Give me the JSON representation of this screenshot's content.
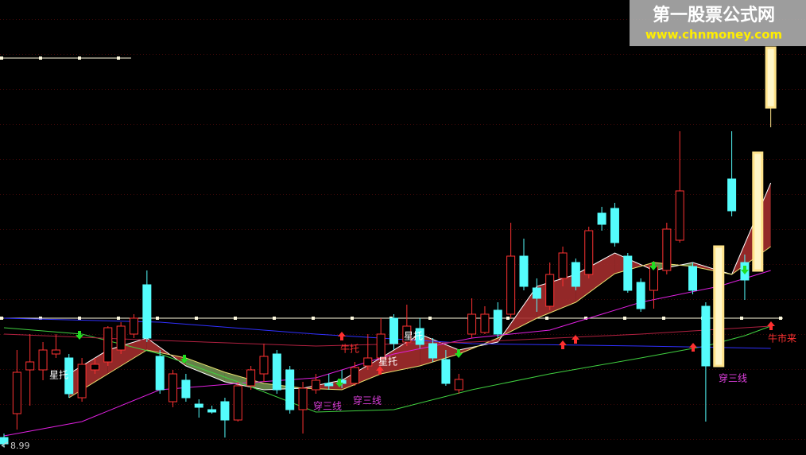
{
  "chart_data": {
    "type": "candlestick",
    "watermark": {
      "title": "第一股票公式网",
      "url": "www.chnmoney.com"
    },
    "ylim": [
      8.8,
      20.24
    ],
    "up_color": "#ff3232",
    "down_color": "#54fcfc",
    "highlight_color": "#ffe38a",
    "highlight": [
      55,
      58,
      59
    ],
    "ohlc": [
      [
        9.24,
        9.34,
        8.99,
        9.08
      ],
      [
        9.84,
        11.44,
        9.44,
        10.88
      ],
      [
        10.94,
        11.84,
        10.04,
        11.14
      ],
      [
        10.94,
        11.64,
        10.68,
        11.44
      ],
      [
        11.34,
        11.84,
        11.24,
        11.44
      ],
      [
        11.24,
        11.34,
        10.24,
        10.34
      ],
      [
        10.24,
        11.24,
        10.14,
        11.08
      ],
      [
        10.94,
        11.24,
        10.84,
        11.08
      ],
      [
        11.14,
        12.04,
        11.04,
        12.0
      ],
      [
        11.44,
        12.14,
        11.34,
        12.04
      ],
      [
        11.84,
        12.34,
        11.74,
        12.24
      ],
      [
        13.08,
        13.44,
        11.64,
        11.74
      ],
      [
        11.28,
        11.44,
        10.34,
        10.44
      ],
      [
        10.14,
        10.94,
        10.0,
        10.84
      ],
      [
        10.68,
        10.84,
        10.14,
        10.24
      ],
      [
        10.08,
        10.2,
        9.74,
        10.0
      ],
      [
        9.94,
        10.04,
        9.84,
        9.88
      ],
      [
        10.14,
        10.24,
        9.24,
        9.68
      ],
      [
        9.68,
        10.64,
        9.64,
        10.54
      ],
      [
        10.54,
        11.04,
        10.44,
        10.94
      ],
      [
        10.84,
        11.6,
        10.64,
        11.28
      ],
      [
        11.34,
        11.44,
        10.34,
        10.44
      ],
      [
        10.94,
        11.04,
        9.84,
        9.94
      ],
      [
        9.94,
        10.64,
        9.34,
        10.48
      ],
      [
        10.44,
        10.84,
        10.34,
        10.68
      ],
      [
        10.6,
        10.84,
        10.44,
        10.54
      ],
      [
        10.68,
        10.94,
        10.48,
        10.6
      ],
      [
        10.6,
        11.14,
        10.54,
        11.0
      ],
      [
        11.04,
        11.84,
        10.94,
        11.24
      ],
      [
        11.24,
        12.24,
        11.04,
        11.84
      ],
      [
        12.24,
        12.34,
        11.44,
        11.6
      ],
      [
        11.64,
        12.58,
        11.54,
        12.04
      ],
      [
        11.98,
        12.24,
        11.48,
        11.58
      ],
      [
        11.6,
        11.74,
        11.14,
        11.24
      ],
      [
        11.2,
        11.44,
        10.54,
        10.6
      ],
      [
        10.44,
        10.84,
        10.34,
        10.7
      ],
      [
        11.84,
        12.74,
        11.74,
        12.34
      ],
      [
        11.88,
        12.54,
        11.84,
        12.34
      ],
      [
        12.44,
        12.64,
        11.74,
        11.84
      ],
      [
        12.34,
        14.64,
        12.24,
        13.8
      ],
      [
        13.8,
        14.24,
        12.94,
        13.04
      ],
      [
        13.0,
        13.24,
        12.4,
        12.74
      ],
      [
        12.54,
        13.64,
        12.44,
        13.34
      ],
      [
        13.24,
        14.04,
        13.04,
        13.88
      ],
      [
        13.64,
        13.74,
        12.94,
        13.04
      ],
      [
        13.34,
        14.54,
        13.24,
        14.44
      ],
      [
        14.88,
        15.04,
        14.44,
        14.6
      ],
      [
        15.0,
        15.14,
        14.04,
        14.14
      ],
      [
        13.8,
        13.88,
        12.88,
        12.94
      ],
      [
        13.14,
        13.24,
        12.4,
        12.48
      ],
      [
        12.94,
        13.68,
        12.48,
        13.54
      ],
      [
        13.44,
        14.64,
        13.34,
        14.48
      ],
      [
        14.2,
        16.94,
        14.14,
        15.44
      ],
      [
        13.54,
        13.64,
        12.84,
        12.94
      ],
      [
        12.54,
        12.64,
        9.64,
        11.04
      ],
      [
        11.04,
        14.04,
        11.04,
        14.04
      ],
      [
        15.74,
        16.94,
        14.8,
        14.94
      ],
      [
        13.64,
        13.84,
        12.7,
        13.2
      ],
      [
        13.44,
        16.4,
        13.44,
        16.4
      ],
      [
        17.54,
        19.04,
        17.04,
        19.04
      ]
    ],
    "ribbon": {
      "x": [
        5,
        8,
        11,
        14,
        17,
        20,
        23,
        26,
        29,
        32,
        35,
        38,
        41,
        44,
        47,
        50,
        53,
        56,
        59
      ],
      "fast": [
        10.84,
        11.44,
        11.74,
        11.04,
        10.64,
        10.44,
        10.48,
        10.68,
        11.24,
        11.84,
        11.44,
        11.64,
        13.04,
        13.34,
        13.88,
        13.44,
        13.64,
        13.34,
        15.64
      ],
      "slow": [
        10.24,
        10.84,
        11.44,
        11.24,
        10.88,
        10.6,
        10.48,
        10.44,
        10.84,
        11.04,
        11.34,
        11.74,
        12.24,
        12.64,
        13.36,
        13.64,
        13.54,
        13.34,
        14.04
      ],
      "up_color": "#a32c2c",
      "down_color": "#6f8f4f",
      "fast_color": "#ffffff",
      "slow_color": "#e8e070"
    },
    "lines": [
      {
        "color": "#e020e0",
        "x": [
          0,
          6,
          12,
          18,
          24,
          30,
          36,
          42,
          49,
          55,
          59
        ],
        "values": [
          9.28,
          9.64,
          10.44,
          10.6,
          10.74,
          11.34,
          11.74,
          11.94,
          12.64,
          13.04,
          13.44
        ]
      },
      {
        "color": "#40d040",
        "x": [
          0,
          6,
          12,
          18,
          24,
          30,
          36,
          42,
          49,
          54,
          57,
          59
        ],
        "values": [
          12.0,
          11.84,
          11.34,
          10.64,
          9.88,
          9.94,
          10.44,
          10.84,
          11.24,
          11.54,
          11.8,
          12.04
        ]
      },
      {
        "color": "#3030ff",
        "x": [
          0,
          12,
          24,
          36,
          49,
          59
        ],
        "values": [
          12.24,
          12.14,
          11.84,
          11.6,
          11.54,
          11.48
        ]
      },
      {
        "color": "#b02040",
        "x": [
          0,
          12,
          24,
          36,
          49,
          59
        ],
        "values": [
          11.84,
          11.68,
          11.54,
          11.64,
          11.84,
          12.04
        ]
      }
    ],
    "ref_lines": [
      {
        "value": 12.24,
        "color": "#fffbe0"
      },
      {
        "value": 18.78,
        "color": "#fffbe0"
      }
    ],
    "annotations": [
      {
        "text": "星托",
        "color": "#ffffff"
      },
      {
        "text": "星托",
        "color": "#ffffff"
      },
      {
        "text": "星托",
        "color": "#ffffff"
      },
      {
        "text": "牛托",
        "color": "#ff3232"
      },
      {
        "text": "穿三线",
        "color": "#e040e0"
      },
      {
        "text": "穿三线",
        "color": "#e040e0"
      },
      {
        "text": "穿三线",
        "color": "#e040e0"
      },
      {
        "text": "牛市来",
        "color": "#ff3232"
      }
    ]
  }
}
